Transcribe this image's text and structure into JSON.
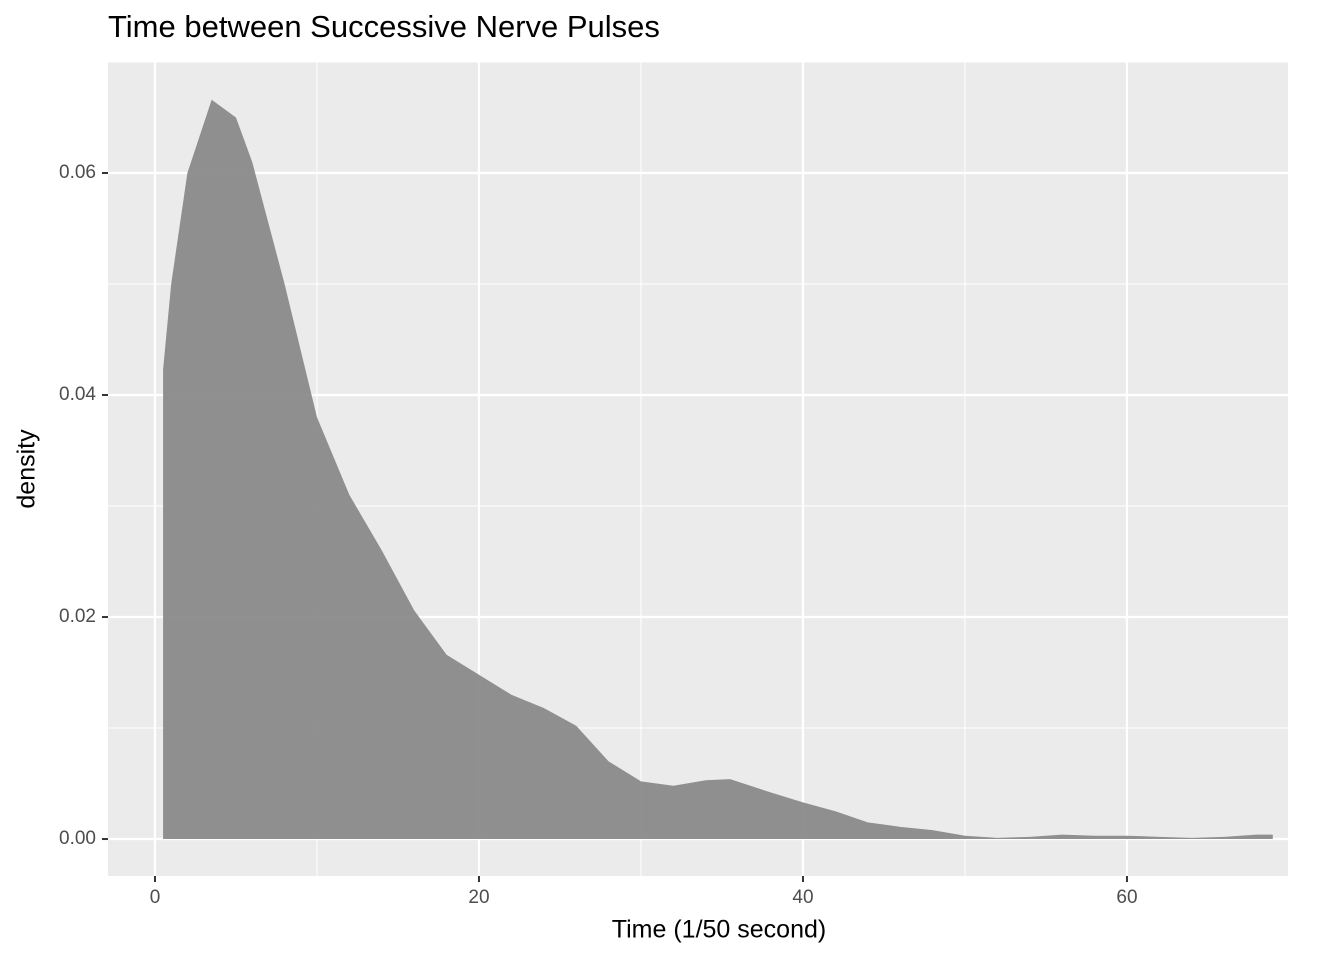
{
  "chart_data": {
    "type": "area",
    "title": "Time between Successive Nerve Pulses",
    "x_label": "Time (1/50 second)",
    "y_label": "density",
    "x": [
      0.5,
      1,
      2,
      3.5,
      5,
      6,
      8,
      10,
      12,
      14,
      16,
      18,
      20,
      22,
      24,
      26,
      28,
      30,
      32,
      34,
      35.5,
      38,
      40,
      42,
      44,
      46,
      48,
      50,
      52,
      54,
      56,
      58,
      60,
      62,
      64,
      66,
      68,
      69
    ],
    "y": [
      0.0423,
      0.05,
      0.06,
      0.0666,
      0.065,
      0.061,
      0.05,
      0.038,
      0.031,
      0.026,
      0.0206,
      0.0166,
      0.0148,
      0.013,
      0.0118,
      0.0102,
      0.007,
      0.0052,
      0.0048,
      0.0053,
      0.0054,
      0.0042,
      0.0033,
      0.0025,
      0.0015,
      0.0011,
      0.0008,
      0.0003,
      0.0001,
      0.0002,
      0.0004,
      0.0003,
      0.0003,
      0.0002,
      0.0001,
      0.0002,
      0.0004,
      0.0004
    ],
    "color": "#8a8a8a",
    "xlim": [
      -2.9,
      69.94
    ],
    "ylim": [
      -0.00333,
      0.07
    ],
    "xticks": [
      0,
      20,
      40,
      60
    ],
    "yticks": [
      {
        "value": 0,
        "label": "0.00"
      },
      {
        "value": 0.02,
        "label": "0.02"
      },
      {
        "value": 0.04,
        "label": "0.04"
      },
      {
        "value": 0.06,
        "label": "0.06"
      }
    ],
    "grid": true
  }
}
